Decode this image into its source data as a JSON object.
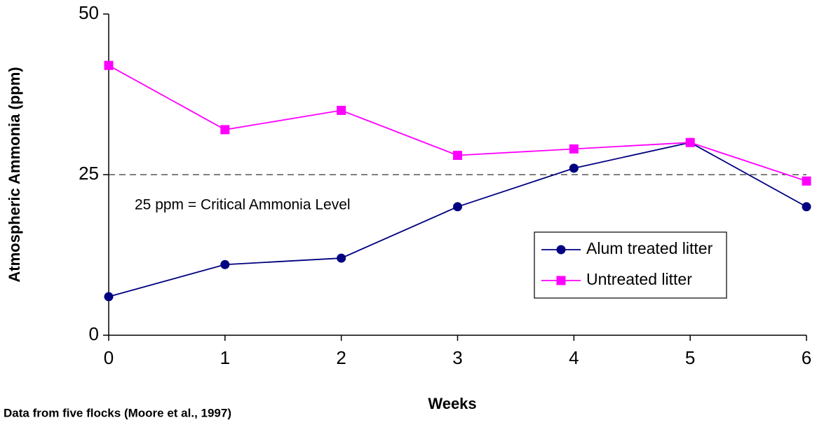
{
  "chart_data": {
    "type": "line",
    "x_label": "Weeks",
    "y_label": "Atmospheric Ammonia (ppm)",
    "x": [
      0,
      1,
      2,
      3,
      4,
      5,
      6
    ],
    "series": [
      {
        "name": "Alum treated litter",
        "color": "#000080",
        "marker": "circle",
        "values": [
          6,
          11,
          12,
          20,
          26,
          30,
          20
        ]
      },
      {
        "name": "Untreated litter",
        "color": "#ff00ff",
        "marker": "square",
        "values": [
          42,
          32,
          35,
          28,
          29,
          30,
          24
        ]
      }
    ],
    "xlim": [
      0,
      6
    ],
    "xticks": [
      0,
      1,
      2,
      3,
      4,
      5,
      6
    ],
    "ylim": [
      0,
      50
    ],
    "yticks": [
      0,
      25,
      50
    ],
    "reference_line": {
      "value": 25,
      "label": "25 ppm = Critical Ammonia Level"
    },
    "note": "Data from five flocks (Moore et al., 1997)",
    "legend": "right"
  }
}
